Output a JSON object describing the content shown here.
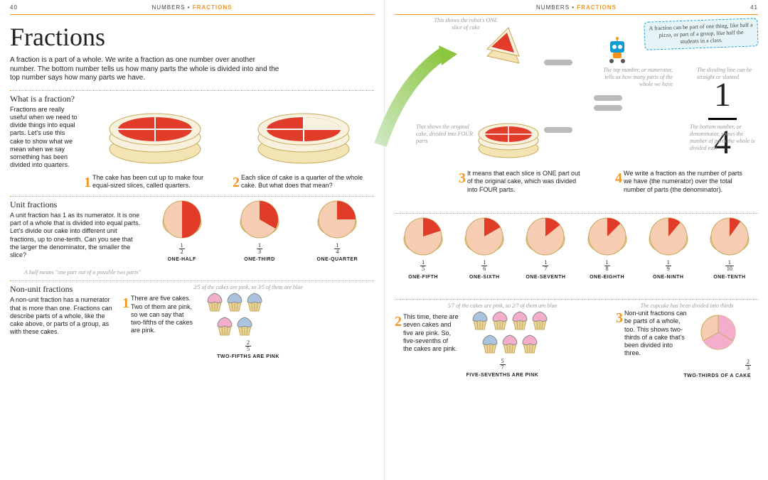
{
  "header": {
    "section": "NUMBERS",
    "topic": "FRACTIONS",
    "page_left": "40",
    "page_right": "41"
  },
  "title": "Fractions",
  "intro": "A fraction is a part of a whole. We write a fraction as one number over another number. The bottom number tells us how many parts the whole is divided into and the top number says how many parts we have.",
  "what_is": {
    "heading": "What is a fraction?",
    "body": "Fractions are really useful when we need to divide things into equal parts. Let's use this cake to show what we mean when we say something has been divided into quarters."
  },
  "steps": {
    "s1": "The cake has been cut up to make four equal-sized slices, called quarters.",
    "s2": "Each slice of cake is a quarter of the whole cake. But what does that mean?",
    "s3": "It means that each slice is ONE part out of the original cake, which was divided into FOUR parts.",
    "s4": "We write a fraction as the number of parts we have (the numerator) over the total number of parts (the denominator)."
  },
  "notes": {
    "slice": "This shows the robot's ONE slice of cake",
    "whole": "This shows the original cake, divided into FOUR parts",
    "numerator": "The top number, or numerator, tells us how many parts of the whole we have",
    "line": "The dividing line can be straight or slanted",
    "denominator": "The bottom number, or denominator, shows the number of parts the whole is divided into",
    "hint": "A fraction can be part of one thing, like half a pizza, or part of a group, like half the students in a class."
  },
  "big_fraction": {
    "n": "1",
    "d": "4"
  },
  "unit_fractions": {
    "heading": "Unit fractions",
    "body": "A unit fraction has 1 as its numerator. It is one part of a whole that is divided into equal parts. Let's divide our cake into different unit fractions, up to one-tenth. Can you see that the larger the denominator, the smaller the slice?",
    "aside": "A half means \"one part out of a possible two parts\"",
    "items": [
      {
        "n": "1",
        "d": "2",
        "label": "ONE-HALF",
        "deg": 180
      },
      {
        "n": "1",
        "d": "3",
        "label": "ONE-THIRD",
        "deg": 120
      },
      {
        "n": "1",
        "d": "4",
        "label": "ONE-QUARTER",
        "deg": 90
      },
      {
        "n": "1",
        "d": "5",
        "label": "ONE-FIFTH",
        "deg": 72
      },
      {
        "n": "1",
        "d": "6",
        "label": "ONE-SIXTH",
        "deg": 60
      },
      {
        "n": "1",
        "d": "7",
        "label": "ONE-SEVENTH",
        "deg": 51.4
      },
      {
        "n": "1",
        "d": "8",
        "label": "ONE-EIGHTH",
        "deg": 45
      },
      {
        "n": "1",
        "d": "9",
        "label": "ONE-NINTH",
        "deg": 40
      },
      {
        "n": "1",
        "d": "10",
        "label": "ONE-TENTH",
        "deg": 36
      }
    ]
  },
  "non_unit": {
    "heading": "Non-unit fractions",
    "body": "A non-unit fraction has a numerator that is more than one. Fractions can describe parts of a whole, like the cake above, or parts of a group, as with these cakes.",
    "c1": {
      "note": "2⁄5 of the cakes are pink, so 3⁄5 of them are blue",
      "text": "There are five cakes. Two of them are pink, so we can say that two-fifths of the cakes are pink.",
      "frac_n": "2",
      "frac_d": "5",
      "label": "TWO-FIFTHS ARE PINK"
    },
    "c2": {
      "note": "5⁄7 of the cakes are pink, so 2⁄7 of them are blue",
      "text": "This time, there are seven cakes and five are pink. So, five-sevenths of the cakes are pink.",
      "frac_n": "5",
      "frac_d": "7",
      "label": "FIVE-SEVENTHS ARE PINK"
    },
    "c3": {
      "note": "The cupcake has been divided into thirds",
      "text": "Non-unit fractions can be parts of a whole, too. This shows two-thirds of a cake that's been divided into three.",
      "frac_n": "2",
      "frac_d": "3",
      "label": "TWO-THIRDS OF A CAKE"
    }
  },
  "colors": {
    "accent": "#f7941d",
    "jam": "#e13b2a",
    "jam_light": "#f08070",
    "cream": "#f8f1de",
    "sponge": "#f3e4b3",
    "pie_bg": "#f6cdb2",
    "pink": "#f4aecb",
    "blue": "#aac4df",
    "grey": "#bbbbbb",
    "note": "#999999"
  },
  "cupcakes": {
    "set1": [
      "pink",
      "blue",
      "blue",
      "pink",
      "blue"
    ],
    "set2": [
      "blue",
      "pink",
      "pink",
      "pink",
      "blue",
      "pink",
      "pink"
    ]
  }
}
